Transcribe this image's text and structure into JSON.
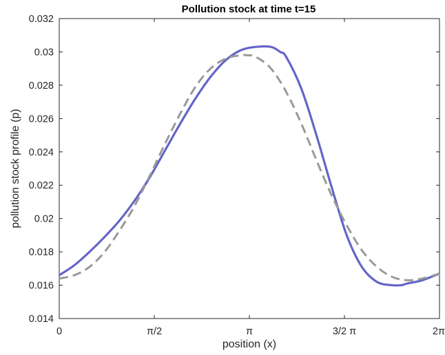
{
  "chart_data": {
    "type": "line",
    "title": "Pollution stock at time t=15",
    "xlabel": "position (x)",
    "ylabel": "pollution stock profile (p)",
    "xlim": [
      0,
      6.2832
    ],
    "ylim": [
      0.014,
      0.032
    ],
    "x_ticks": [
      {
        "value": 0,
        "label": "0"
      },
      {
        "value": 1.5708,
        "label": "π/2"
      },
      {
        "value": 3.1416,
        "label": "π"
      },
      {
        "value": 4.7124,
        "label": "3/2 π"
      },
      {
        "value": 6.2832,
        "label": "2π"
      }
    ],
    "y_ticks": [
      {
        "value": 0.014,
        "label": "0.014"
      },
      {
        "value": 0.016,
        "label": "0.016"
      },
      {
        "value": 0.018,
        "label": "0.018"
      },
      {
        "value": 0.02,
        "label": "0.02"
      },
      {
        "value": 0.022,
        "label": "0.022"
      },
      {
        "value": 0.024,
        "label": "0.024"
      },
      {
        "value": 0.026,
        "label": "0.026"
      },
      {
        "value": 0.028,
        "label": "0.028"
      },
      {
        "value": 0.03,
        "label": "0.03"
      },
      {
        "value": 0.032,
        "label": "0.032"
      }
    ],
    "grid": false,
    "legend": "none",
    "series": [
      {
        "style": "solid",
        "color": "#6464c8",
        "x": [
          0,
          0.25,
          0.5,
          0.75,
          1.0,
          1.25,
          1.5,
          1.75,
          2.0,
          2.25,
          2.5,
          2.75,
          3.0,
          3.25,
          3.5,
          3.65,
          3.75,
          4.0,
          4.25,
          4.5,
          4.75,
          5.0,
          5.25,
          5.5,
          5.65,
          5.75,
          6.0,
          6.2832
        ],
        "y": [
          0.0166,
          0.0172,
          0.018,
          0.0189,
          0.0199,
          0.0211,
          0.0225,
          0.0241,
          0.0257,
          0.0272,
          0.0285,
          0.0295,
          0.0301,
          0.0303,
          0.0303,
          0.03,
          0.0297,
          0.0278,
          0.025,
          0.0219,
          0.019,
          0.0171,
          0.0162,
          0.016,
          0.016,
          0.0161,
          0.0163,
          0.0167
        ]
      },
      {
        "style": "dashed",
        "color": "#999999",
        "x": [
          0,
          0.25,
          0.5,
          0.75,
          1.0,
          1.25,
          1.5,
          1.75,
          2.0,
          2.25,
          2.5,
          2.75,
          3.0,
          3.1,
          3.25,
          3.5,
          3.75,
          4.0,
          4.25,
          4.5,
          4.75,
          5.0,
          5.25,
          5.5,
          5.75,
          6.0,
          6.2832
        ],
        "y": [
          0.0164,
          0.0166,
          0.0171,
          0.018,
          0.0193,
          0.0208,
          0.0226,
          0.0245,
          0.0263,
          0.0279,
          0.029,
          0.0296,
          0.0298,
          0.0298,
          0.0297,
          0.029,
          0.0276,
          0.0257,
          0.0235,
          0.0214,
          0.0196,
          0.0181,
          0.0171,
          0.0165,
          0.0163,
          0.0164,
          0.0167
        ]
      }
    ]
  }
}
